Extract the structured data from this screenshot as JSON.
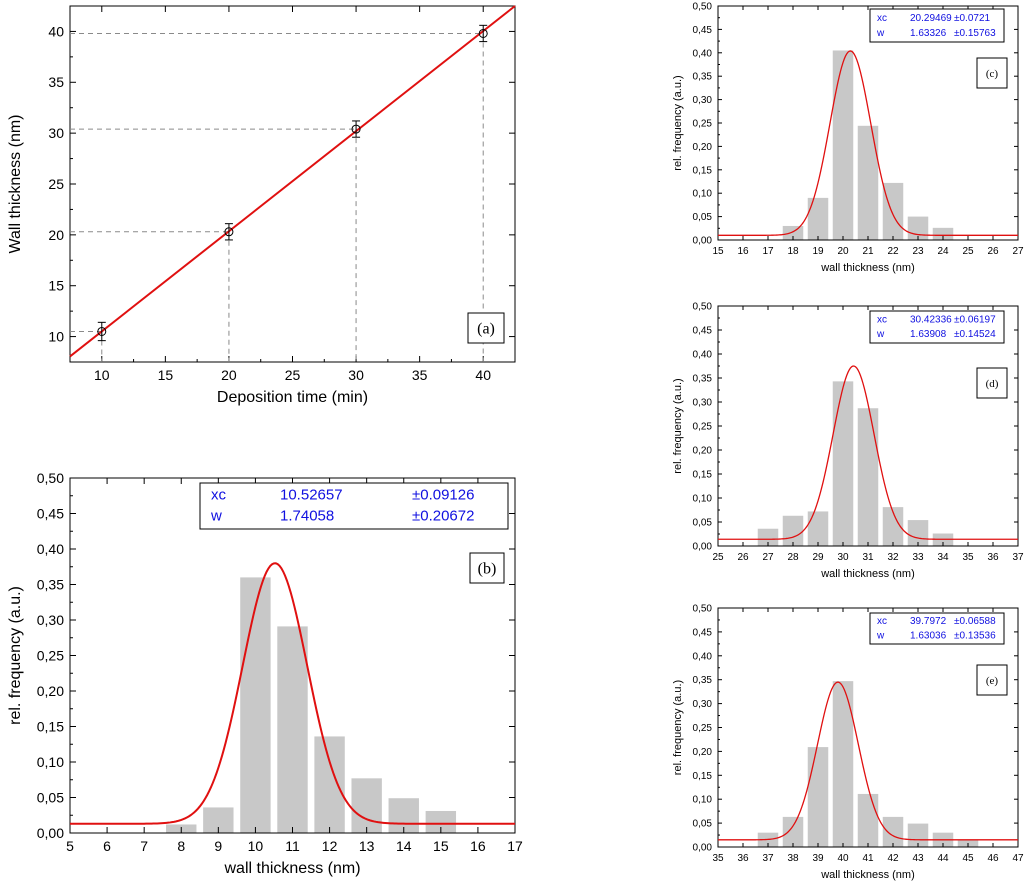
{
  "colors": {
    "fit_line": "#e01010",
    "bar_fill": "#c8c8c8",
    "stats_text": "#1010e0",
    "guide": "#8a8a8a"
  },
  "chart_data": [
    {
      "id": "a",
      "type": "line",
      "panel_label": "(a)",
      "xlabel": "Deposition time (min)",
      "ylabel": "Wall thickness (nm)",
      "xlim": [
        7.5,
        42.5
      ],
      "ylim": [
        7.5,
        42.5
      ],
      "xticks": [
        10,
        15,
        20,
        25,
        30,
        35,
        40
      ],
      "yticks": [
        10,
        15,
        20,
        25,
        30,
        35,
        40
      ],
      "xtick_labels": [
        "10",
        "15",
        "20",
        "25",
        "30",
        "35",
        "40"
      ],
      "ytick_labels": [
        "10",
        "15",
        "20",
        "25",
        "30",
        "35",
        "40"
      ],
      "points": {
        "x": [
          10,
          20,
          30,
          40
        ],
        "y": [
          10.5,
          20.3,
          30.4,
          39.8
        ],
        "err": [
          0.9,
          0.8,
          0.8,
          0.8
        ]
      },
      "fit": {
        "x": [
          7.5,
          42.5
        ],
        "y": [
          8.05,
          42.5
        ]
      }
    },
    {
      "id": "b",
      "type": "bar",
      "panel_label": "(b)",
      "xlabel": "wall thickness (nm)",
      "ylabel": "rel. frequency (a.u.)",
      "xlim": [
        5,
        17
      ],
      "ylim": [
        0,
        0.5
      ],
      "xticks": [
        5,
        6,
        7,
        8,
        9,
        10,
        11,
        12,
        13,
        14,
        15,
        16,
        17
      ],
      "yticks": [
        0,
        0.05,
        0.1,
        0.15,
        0.2,
        0.25,
        0.3,
        0.35,
        0.4,
        0.45,
        0.5
      ],
      "xtick_labels": [
        "5",
        "6",
        "7",
        "8",
        "9",
        "10",
        "11",
        "12",
        "13",
        "14",
        "15",
        "16",
        "17"
      ],
      "ytick_labels": [
        "0,00",
        "0,05",
        "0,10",
        "0,15",
        "0,20",
        "0,25",
        "0,30",
        "0,35",
        "0,40",
        "0,45",
        "0,50"
      ],
      "bar_centers": [
        8,
        9,
        10,
        11,
        12,
        13,
        14,
        15
      ],
      "values": [
        0.012,
        0.036,
        0.36,
        0.291,
        0.136,
        0.077,
        0.049,
        0.031
      ],
      "fit": {
        "y0": 0.013,
        "A": 0.367,
        "xc": 10.52657,
        "w": 1.74058
      },
      "stats": {
        "xc_label": "xc",
        "xc_value": "10.52657",
        "xc_err": "±0.09126",
        "w_label": "w",
        "w_value": "1.74058",
        "w_err": "±0.20672"
      }
    },
    {
      "id": "c",
      "type": "bar",
      "panel_label": "(c)",
      "xlabel": "wall thickness (nm)",
      "ylabel": "rel. frequency (a.u.)",
      "xlim": [
        15,
        27
      ],
      "ylim": [
        0,
        0.5
      ],
      "xticks": [
        15,
        16,
        17,
        18,
        19,
        20,
        21,
        22,
        23,
        24,
        25,
        26,
        27
      ],
      "yticks": [
        0,
        0.05,
        0.1,
        0.15,
        0.2,
        0.25,
        0.3,
        0.35,
        0.4,
        0.45,
        0.5
      ],
      "xtick_labels": [
        "15",
        "16",
        "17",
        "18",
        "19",
        "20",
        "21",
        "22",
        "23",
        "24",
        "25",
        "26",
        "27"
      ],
      "ytick_labels": [
        "0,00",
        "0,05",
        "0,10",
        "0,15",
        "0,20",
        "0,25",
        "0,30",
        "0,35",
        "0,40",
        "0,45",
        "0,50"
      ],
      "bar_centers": [
        18,
        19,
        20,
        21,
        22,
        23,
        24
      ],
      "values": [
        0.03,
        0.09,
        0.405,
        0.244,
        0.122,
        0.05,
        0.026
      ],
      "fit": {
        "y0": 0.01,
        "A": 0.394,
        "xc": 20.29469,
        "w": 1.63326
      },
      "stats": {
        "xc_label": "xc",
        "xc_value": "20.29469",
        "xc_err": "±0.0721",
        "w_label": "w",
        "w_value": "1.63326",
        "w_err": "±0.15763"
      }
    },
    {
      "id": "d",
      "type": "bar",
      "panel_label": "(d)",
      "xlabel": "wall thickness (nm)",
      "ylabel": "rel. frequency (a.u.)",
      "xlim": [
        25,
        37
      ],
      "ylim": [
        0,
        0.5
      ],
      "xticks": [
        25,
        26,
        27,
        28,
        29,
        30,
        31,
        32,
        33,
        34,
        35,
        36,
        37
      ],
      "yticks": [
        0,
        0.05,
        0.1,
        0.15,
        0.2,
        0.25,
        0.3,
        0.35,
        0.4,
        0.45,
        0.5
      ],
      "xtick_labels": [
        "25",
        "26",
        "27",
        "28",
        "29",
        "30",
        "31",
        "32",
        "33",
        "34",
        "35",
        "36",
        "37"
      ],
      "ytick_labels": [
        "0,00",
        "0,05",
        "0,10",
        "0,15",
        "0,20",
        "0,25",
        "0,30",
        "0,35",
        "0,40",
        "0,45",
        "0,50"
      ],
      "bar_centers": [
        27,
        28,
        29,
        30,
        31,
        32,
        33,
        34
      ],
      "values": [
        0.036,
        0.063,
        0.072,
        0.343,
        0.287,
        0.081,
        0.054,
        0.026
      ],
      "fit": {
        "y0": 0.014,
        "A": 0.361,
        "xc": 30.42336,
        "w": 1.63908
      },
      "stats": {
        "xc_label": "xc",
        "xc_value": "30.42336",
        "xc_err": "±0.06197",
        "w_label": "w",
        "w_value": "1.63908",
        "w_err": "±0.14524"
      }
    },
    {
      "id": "e",
      "type": "bar",
      "panel_label": "(e)",
      "xlabel": "wall thickness (nm)",
      "ylabel": "rel. frequency (a.u.)",
      "xlim": [
        35,
        47
      ],
      "ylim": [
        0,
        0.5
      ],
      "xticks": [
        35,
        36,
        37,
        38,
        39,
        40,
        41,
        42,
        43,
        44,
        45,
        46,
        47
      ],
      "yticks": [
        0,
        0.05,
        0.1,
        0.15,
        0.2,
        0.25,
        0.3,
        0.35,
        0.4,
        0.45,
        0.5
      ],
      "xtick_labels": [
        "35",
        "36",
        "37",
        "38",
        "39",
        "40",
        "41",
        "42",
        "43",
        "44",
        "45",
        "46",
        "47"
      ],
      "ytick_labels": [
        "0,00",
        "0,05",
        "0,10",
        "0,15",
        "0,20",
        "0,25",
        "0,30",
        "0,35",
        "0,40",
        "0,45",
        "0,50"
      ],
      "bar_centers": [
        37,
        38,
        39,
        40,
        41,
        42,
        43,
        44,
        45
      ],
      "values": [
        0.03,
        0.063,
        0.209,
        0.347,
        0.111,
        0.063,
        0.049,
        0.03,
        0.015
      ],
      "fit": {
        "y0": 0.015,
        "A": 0.33,
        "xc": 39.7972,
        "w": 1.63036
      },
      "stats": {
        "xc_label": "xc",
        "xc_value": "39.7972",
        "xc_err": "±0.06588",
        "w_label": "w",
        "w_value": "1.63036",
        "w_err": "±0.13536"
      }
    }
  ]
}
